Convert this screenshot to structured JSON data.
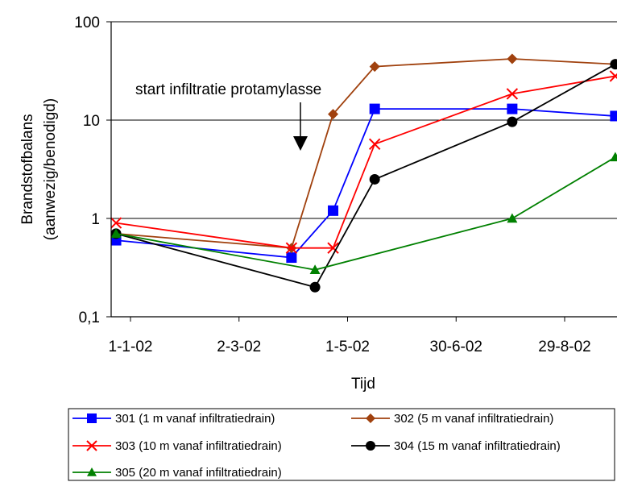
{
  "chart_data": {
    "type": "line",
    "y_scale": "log",
    "xlabel": "Tijd",
    "ylabel_line1": "Brandstofbalans",
    "ylabel_line2": "(aanwezig/benodigd)",
    "x_ticks": [
      "1-1-02",
      "2-3-02",
      "1-5-02",
      "30-6-02",
      "29-8-02"
    ],
    "x_tick_days": [
      0,
      60,
      120,
      180,
      240
    ],
    "xlim": [
      0,
      262
    ],
    "y_ticks": [
      "0,1",
      "1",
      "10",
      "100"
    ],
    "y_tick_values": [
      0.1,
      1,
      10,
      100
    ],
    "ylim": [
      0.1,
      100
    ],
    "grid": "horizontal",
    "annotation": "start infiltratie protamylasse",
    "legend_position": "bottom",
    "series": [
      {
        "name": "301 (1 m vanaf infiltratiedrain)",
        "color": "#0000ff",
        "marker": "square",
        "points": [
          [
            -8,
            0.6
          ],
          [
            89,
            0.4
          ],
          [
            112,
            1.2
          ],
          [
            135,
            13
          ],
          [
            211,
            13
          ],
          [
            268,
            11
          ]
        ]
      },
      {
        "name": "302 (5 m vanaf infiltratiedrain)",
        "color": "#a0410e",
        "marker": "diamond",
        "points": [
          [
            -8,
            0.7
          ],
          [
            89,
            0.5
          ],
          [
            112,
            11.5
          ],
          [
            135,
            35
          ],
          [
            211,
            42
          ],
          [
            268,
            37
          ]
        ]
      },
      {
        "name": "303 (10 m vanaf infiltratiedrain)",
        "color": "#ff0000",
        "marker": "x",
        "points": [
          [
            -8,
            0.9
          ],
          [
            89,
            0.5
          ],
          [
            112,
            0.5
          ],
          [
            135,
            5.7
          ],
          [
            211,
            18.5
          ],
          [
            268,
            28
          ]
        ]
      },
      {
        "name": "304 (15 m vanaf infiltratiedrain)",
        "color": "#000000",
        "marker": "circle",
        "points": [
          [
            -8,
            0.7
          ],
          [
            102,
            0.2
          ],
          [
            135,
            2.5
          ],
          [
            211,
            9.6
          ],
          [
            268,
            37
          ]
        ]
      },
      {
        "name": "305 (20 m vanaf infiltratiedrain)",
        "color": "#008000",
        "marker": "triangle",
        "points": [
          [
            -8,
            0.7
          ],
          [
            102,
            0.3
          ],
          [
            211,
            1.0
          ],
          [
            268,
            4.2
          ]
        ]
      }
    ]
  }
}
